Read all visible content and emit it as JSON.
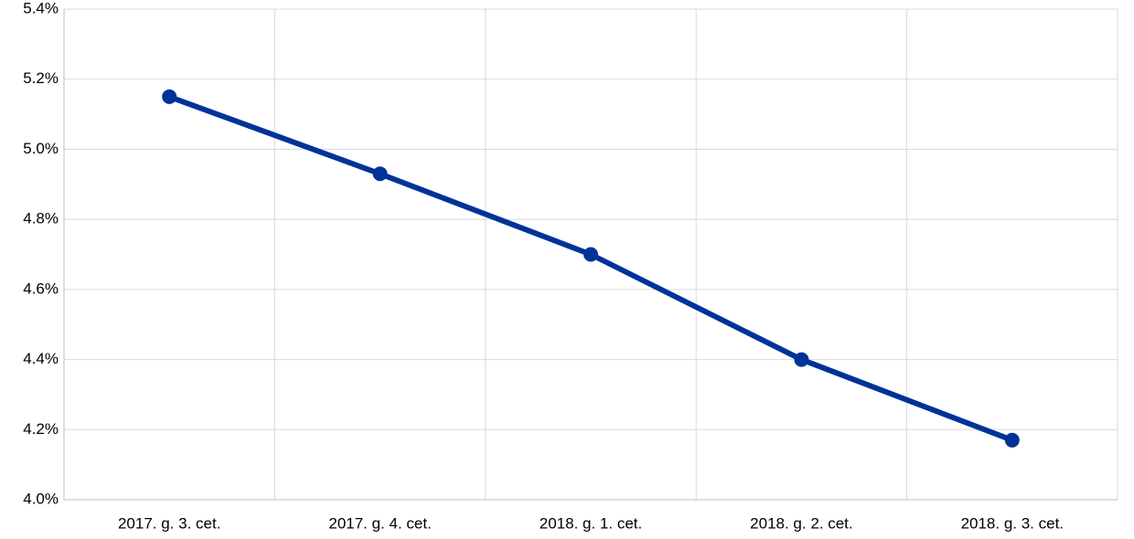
{
  "chart_data": {
    "type": "line",
    "categories": [
      "2017. g. 3. cet.",
      "2017. g. 4. cet.",
      "2018. g. 1. cet.",
      "2018. g. 2. cet.",
      "2018. g. 3. cet."
    ],
    "series": [
      {
        "color": "#003299",
        "values": [
          5.15,
          4.93,
          4.7,
          4.4,
          4.17
        ]
      }
    ],
    "ylim": [
      4.0,
      5.4
    ],
    "yticks": [
      {
        "value": 4.0,
        "label": "4.0%"
      },
      {
        "value": 4.2,
        "label": "4.2%"
      },
      {
        "value": 4.4,
        "label": "4.4%"
      },
      {
        "value": 4.6,
        "label": "4.6%"
      },
      {
        "value": 4.8,
        "label": "4.8%"
      },
      {
        "value": 5.0,
        "label": "5.0%"
      },
      {
        "value": 5.2,
        "label": "5.2%"
      },
      {
        "value": 5.4,
        "label": "5.4%"
      }
    ],
    "grid": true
  }
}
